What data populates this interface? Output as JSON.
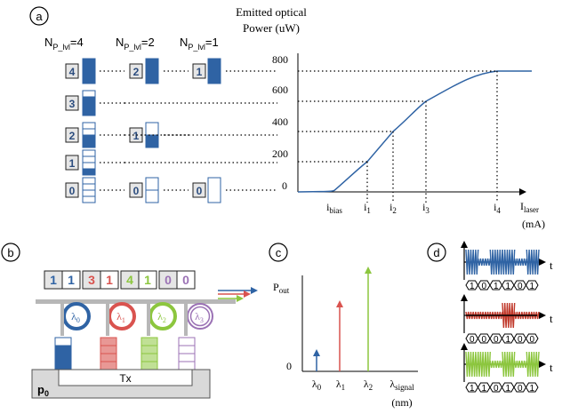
{
  "panels": {
    "a": {
      "label": "a",
      "header_line1": "Emitted optical",
      "header_line2": "Power (uW)",
      "npl4": "N",
      "npl4_sub": "P_lvl",
      "npl4_val": "=4",
      "npl2": "N",
      "npl2_sub": "P_lvl",
      "npl2_val": "=2",
      "npl1": "N",
      "npl1_sub": "P_lvl",
      "npl1_val": "=1",
      "levels4": [
        "4",
        "3",
        "2",
        "1",
        "0"
      ],
      "levels2": [
        "2",
        "1",
        "0"
      ],
      "levels1": [
        "1",
        "0"
      ],
      "y_ticks": [
        "800",
        "600",
        "400",
        "200",
        "0"
      ],
      "x_ticks": [
        {
          "main": "i",
          "sub": "bias"
        },
        {
          "main": "i",
          "sub": "1"
        },
        {
          "main": "i",
          "sub": "2"
        },
        {
          "main": "i",
          "sub": "3"
        },
        {
          "main": "i",
          "sub": "4"
        }
      ],
      "x_axis_main": "I",
      "x_axis_sub": "laser",
      "x_axis_unit": "(mA)"
    },
    "b": {
      "label": "b",
      "code": [
        {
          "text": "1",
          "color": "#2f63a4"
        },
        {
          "text": "1",
          "color": "#2f63a4"
        },
        {
          "text": "3",
          "color": "#d9534f"
        },
        {
          "text": "1",
          "color": "#d9534f"
        },
        {
          "text": "4",
          "color": "#8cc63e"
        },
        {
          "text": "1",
          "color": "#8cc63e"
        },
        {
          "text": "0",
          "color": "#9b72b5"
        },
        {
          "text": "0",
          "color": "#9b72b5"
        }
      ],
      "rings": [
        {
          "main": "λ",
          "sub": "0",
          "color": "#2f63a4"
        },
        {
          "main": "λ",
          "sub": "1",
          "color": "#d9534f"
        },
        {
          "main": "λ",
          "sub": "2",
          "color": "#8cc63e"
        },
        {
          "main": "λ",
          "sub": "3",
          "color": "#9b72b5"
        }
      ],
      "substrate": "p",
      "substrate_sub": "0",
      "tx": "Tx"
    },
    "c": {
      "label": "c",
      "y_main": "P",
      "y_sub": "out",
      "zero": "0",
      "x_ticks": [
        {
          "main": "λ",
          "sub": "0"
        },
        {
          "main": "λ",
          "sub": "1"
        },
        {
          "main": "λ",
          "sub": "2"
        },
        {
          "main": "λ",
          "sub": "signal"
        }
      ],
      "x_unit": "(nm)"
    },
    "d": {
      "label": "d",
      "t_label": "t",
      "rows": [
        {
          "bits": [
            "1",
            "0",
            "1",
            "1",
            "0",
            "1"
          ],
          "color": "#2f63a4"
        },
        {
          "bits": [
            "0",
            "0",
            "0",
            "1",
            "0",
            "0"
          ],
          "color": "#c0392b"
        },
        {
          "bits": [
            "1",
            "1",
            "0",
            "1",
            "0",
            "1"
          ],
          "color": "#8cc63e"
        }
      ]
    }
  },
  "chart_data": {
    "type": "line",
    "title": "",
    "xlabel": "I laser (mA)",
    "ylabel": "Emitted optical Power (uW)",
    "y_ticks": [
      0,
      200,
      400,
      600,
      800
    ],
    "x_ticks": [
      "i bias",
      "i 1",
      "i 2",
      "i 3",
      "i 4"
    ],
    "ylim": [
      0,
      800
    ],
    "series": [
      {
        "x": [
          "i bias",
          "i 1",
          "i 2",
          "i 3",
          "i 4"
        ],
        "values": [
          10,
          200,
          400,
          600,
          800
        ]
      }
    ]
  },
  "colors": {
    "blue": "#2f63a4",
    "red": "#d9534f",
    "green": "#8cc63e",
    "purple": "#9b72b5",
    "grey": "#b7b7b7"
  }
}
